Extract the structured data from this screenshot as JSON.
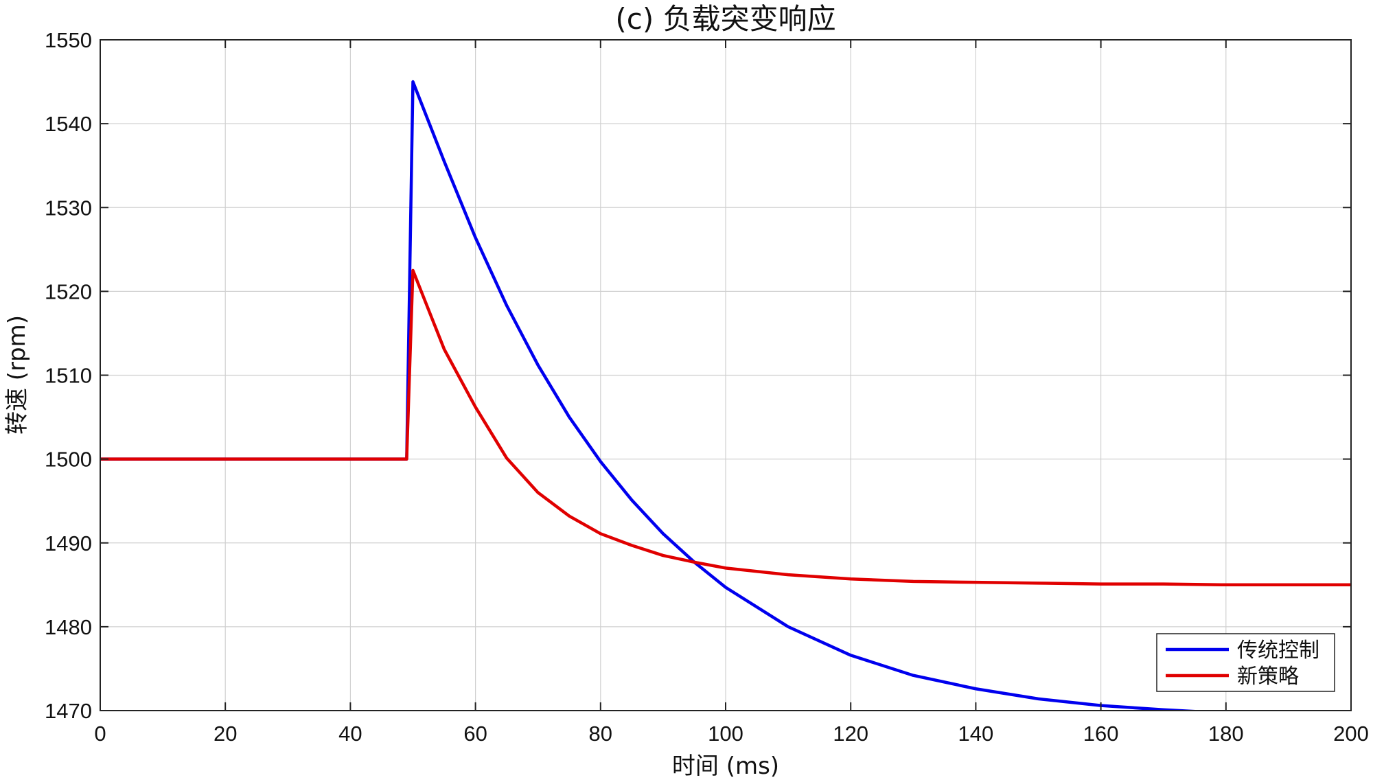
{
  "chart_data": {
    "type": "line",
    "title": "(c) 负载突变响应",
    "xlabel": "时间 (ms)",
    "ylabel": "转速 (rpm)",
    "xlim": [
      0,
      200
    ],
    "ylim": [
      1470,
      1550
    ],
    "xticks": [
      0,
      20,
      40,
      60,
      80,
      100,
      120,
      140,
      160,
      180,
      200
    ],
    "yticks": [
      1470,
      1480,
      1490,
      1500,
      1510,
      1520,
      1530,
      1540,
      1550
    ],
    "grid": true,
    "legend_position": "bottom-right",
    "series": [
      {
        "name": "传统控制",
        "color": "#0000ee",
        "x": [
          0,
          49,
          50,
          55,
          60,
          65,
          70,
          75,
          80,
          85,
          90,
          95,
          100,
          110,
          120,
          130,
          140,
          150,
          160,
          170,
          180,
          190,
          200
        ],
        "y": [
          1500,
          1500,
          1545,
          1535.5,
          1526.4,
          1518.3,
          1511.2,
          1505.0,
          1499.7,
          1495.1,
          1491.1,
          1487.7,
          1484.7,
          1480.0,
          1476.6,
          1474.2,
          1472.6,
          1471.4,
          1470.6,
          1470.1,
          1469.7,
          1469.4,
          1469.2
        ]
      },
      {
        "name": "新策略",
        "color": "#e00000",
        "x": [
          0,
          49,
          50,
          55,
          60,
          65,
          70,
          75,
          80,
          85,
          90,
          95,
          100,
          110,
          120,
          130,
          140,
          150,
          160,
          170,
          180,
          190,
          200
        ],
        "y": [
          1500,
          1500,
          1522.5,
          1513.1,
          1506.2,
          1500.1,
          1496.0,
          1493.2,
          1491.1,
          1489.7,
          1488.5,
          1487.7,
          1487.0,
          1486.2,
          1485.7,
          1485.4,
          1485.3,
          1485.2,
          1485.1,
          1485.1,
          1485.0,
          1485.0,
          1485.0
        ]
      }
    ]
  }
}
